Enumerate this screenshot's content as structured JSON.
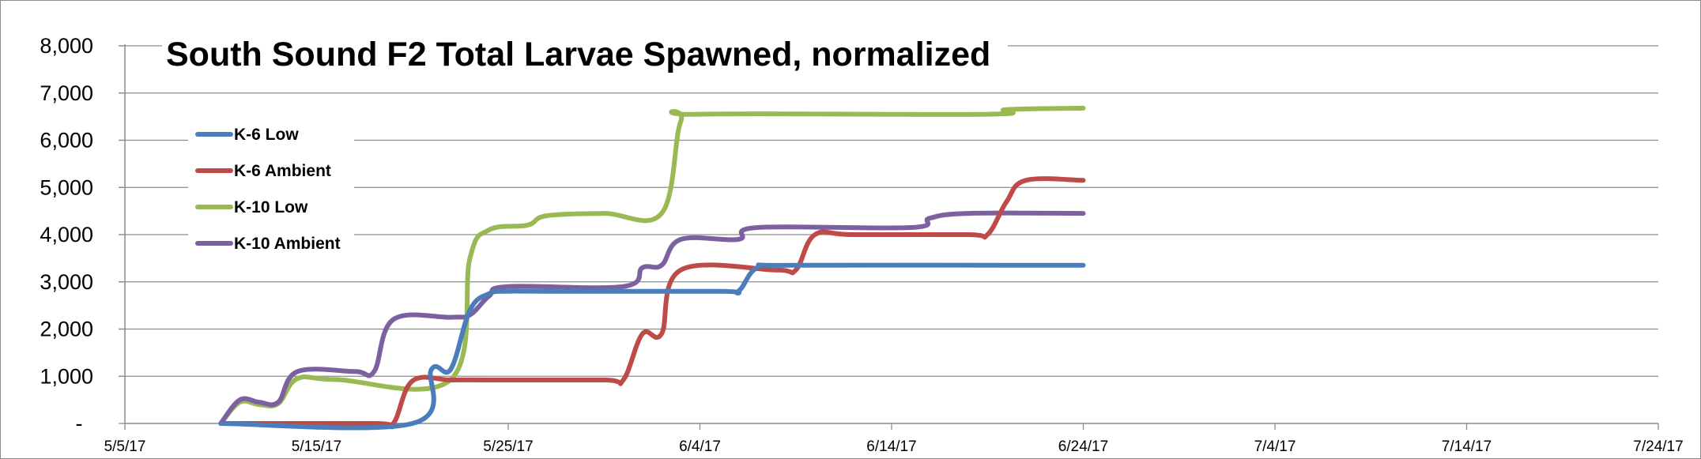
{
  "chart_data": {
    "type": "line",
    "title": "South Sound F2 Total Larvae Spawned, normalized",
    "xlabel": "",
    "ylabel": "",
    "x_ticks": [
      "5/5/17",
      "5/15/17",
      "5/25/17",
      "6/4/17",
      "6/14/17",
      "6/24/17",
      "7/4/17",
      "7/14/17",
      "7/24/17"
    ],
    "y_ticks": [
      "-",
      "1,000",
      "2,000",
      "3,000",
      "4,000",
      "5,000",
      "6,000",
      "7,000",
      "8,000"
    ],
    "xlim": [
      "5/5/17",
      "7/24/17"
    ],
    "ylim": [
      0,
      8000
    ],
    "grid": "horizontal",
    "legend_position": "left",
    "series": [
      {
        "name": "K-6 Low",
        "color": "#4a7ebb",
        "points": [
          [
            "5/10/17",
            0
          ],
          [
            "5/20/17",
            0
          ],
          [
            "5/21/17",
            1150
          ],
          [
            "5/22/17",
            1150
          ],
          [
            "5/23/17",
            2400
          ],
          [
            "5/24/17",
            2750
          ],
          [
            "5/25/17",
            2800
          ],
          [
            "5/27/17",
            2800
          ],
          [
            "6/5/17",
            2800
          ],
          [
            "6/6/17",
            2800
          ],
          [
            "6/7/17",
            3300
          ],
          [
            "6/9/17",
            3350
          ],
          [
            "6/24/17",
            3350
          ]
        ]
      },
      {
        "name": "K-6 Ambient",
        "color": "#be4b48",
        "points": [
          [
            "5/10/17",
            0
          ],
          [
            "5/18/17",
            0
          ],
          [
            "5/19/17",
            0
          ],
          [
            "5/20/17",
            900
          ],
          [
            "5/22/17",
            920
          ],
          [
            "5/24/17",
            920
          ],
          [
            "5/30/17",
            920
          ],
          [
            "5/31/17",
            920
          ],
          [
            "6/1/17",
            1900
          ],
          [
            "6/2/17",
            1900
          ],
          [
            "6/3/17",
            3250
          ],
          [
            "6/8/17",
            3250
          ],
          [
            "6/9/17",
            3250
          ],
          [
            "6/10/17",
            4000
          ],
          [
            "6/12/17",
            4000
          ],
          [
            "6/18/17",
            4000
          ],
          [
            "6/19/17",
            4000
          ],
          [
            "6/20/17",
            4700
          ],
          [
            "6/21/17",
            5150
          ],
          [
            "6/24/17",
            5150
          ]
        ]
      },
      {
        "name": "K-10 Low",
        "color": "#98b954",
        "points": [
          [
            "5/10/17",
            0
          ],
          [
            "5/11/17",
            450
          ],
          [
            "5/12/17",
            400
          ],
          [
            "5/13/17",
            420
          ],
          [
            "5/14/17",
            950
          ],
          [
            "5/16/17",
            930
          ],
          [
            "5/22/17",
            930
          ],
          [
            "5/23/17",
            3500
          ],
          [
            "5/24/17",
            4100
          ],
          [
            "5/26/17",
            4200
          ],
          [
            "5/27/17",
            4400
          ],
          [
            "5/30/17",
            4450
          ],
          [
            "6/2/17",
            4450
          ],
          [
            "6/3/17",
            6400
          ],
          [
            "6/4/17",
            6550
          ],
          [
            "6/19/17",
            6550
          ],
          [
            "6/20/17",
            6650
          ],
          [
            "6/24/17",
            6680
          ]
        ]
      },
      {
        "name": "K-10 Ambient",
        "color": "#7d60a0",
        "points": [
          [
            "5/10/17",
            0
          ],
          [
            "5/11/17",
            500
          ],
          [
            "5/12/17",
            450
          ],
          [
            "5/13/17",
            450
          ],
          [
            "5/14/17",
            1100
          ],
          [
            "5/17/17",
            1100
          ],
          [
            "5/18/17",
            1100
          ],
          [
            "5/19/17",
            2200
          ],
          [
            "5/22/17",
            2250
          ],
          [
            "5/23/17",
            2300
          ],
          [
            "5/24/17",
            2700
          ],
          [
            "5/25/17",
            2900
          ],
          [
            "5/31/17",
            2900
          ],
          [
            "6/1/17",
            3300
          ],
          [
            "6/2/17",
            3350
          ],
          [
            "6/3/17",
            3900
          ],
          [
            "6/6/17",
            3900
          ],
          [
            "6/7/17",
            4150
          ],
          [
            "6/15/17",
            4150
          ],
          [
            "6/16/17",
            4350
          ],
          [
            "6/18/17",
            4450
          ],
          [
            "6/24/17",
            4450
          ]
        ]
      }
    ]
  }
}
